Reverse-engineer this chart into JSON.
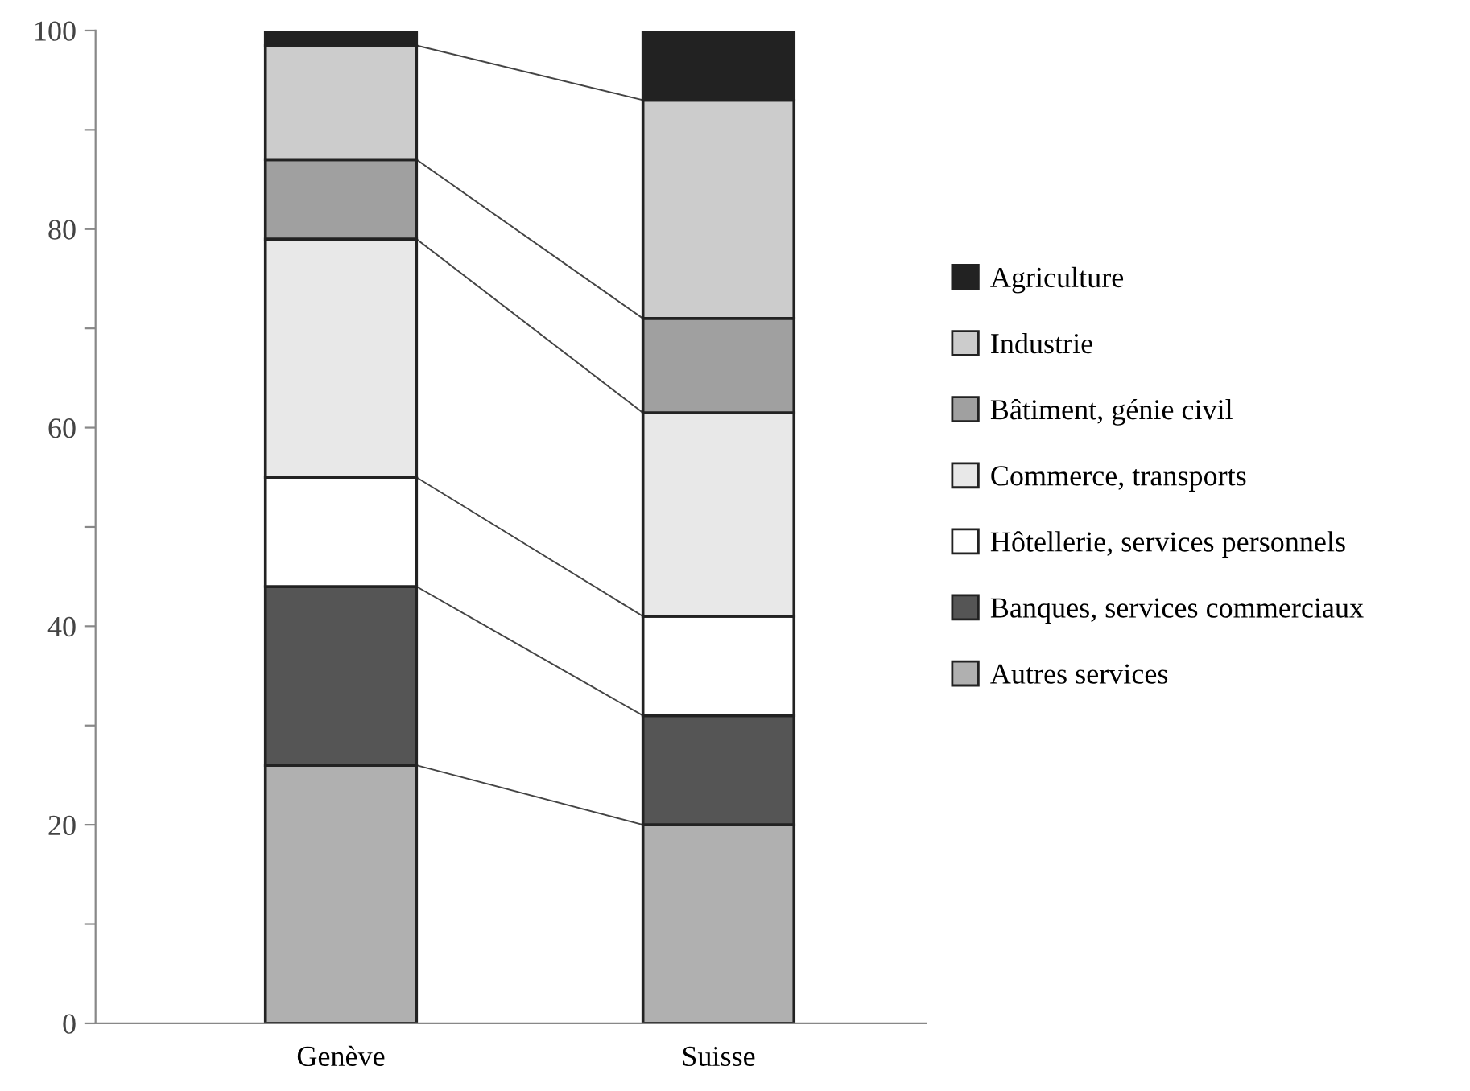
{
  "chart_data": {
    "type": "bar",
    "stacked": true,
    "categories": [
      "Genève",
      "Suisse"
    ],
    "series": [
      {
        "name": "Autres services",
        "color": "#b0b0b0",
        "values": [
          26,
          20
        ]
      },
      {
        "name": "Banques, services commerciaux",
        "color": "#555555",
        "values": [
          18,
          11
        ]
      },
      {
        "name": "Hôtellerie, services personnels",
        "color": "#ffffff",
        "values": [
          11,
          10
        ]
      },
      {
        "name": "Commerce, transports",
        "color": "#e8e8e8",
        "values": [
          24,
          20.5
        ]
      },
      {
        "name": "Bâtiment, génie civil",
        "color": "#a0a0a0",
        "values": [
          8,
          9.5
        ]
      },
      {
        "name": "Industrie",
        "color": "#cccccc",
        "values": [
          11.5,
          22
        ]
      },
      {
        "name": "Agriculture",
        "color": "#222222",
        "values": [
          1.5,
          7
        ]
      }
    ],
    "ylim": [
      0,
      100
    ],
    "yticks": [
      0,
      {
        "value": 10,
        "label": null
      },
      20,
      {
        "value": 30,
        "label": null
      },
      40,
      {
        "value": 50,
        "label": null
      },
      60,
      {
        "value": 70,
        "label": null
      },
      80,
      {
        "value": 90,
        "label": null
      },
      100
    ],
    "grid": false,
    "legend": "right"
  }
}
